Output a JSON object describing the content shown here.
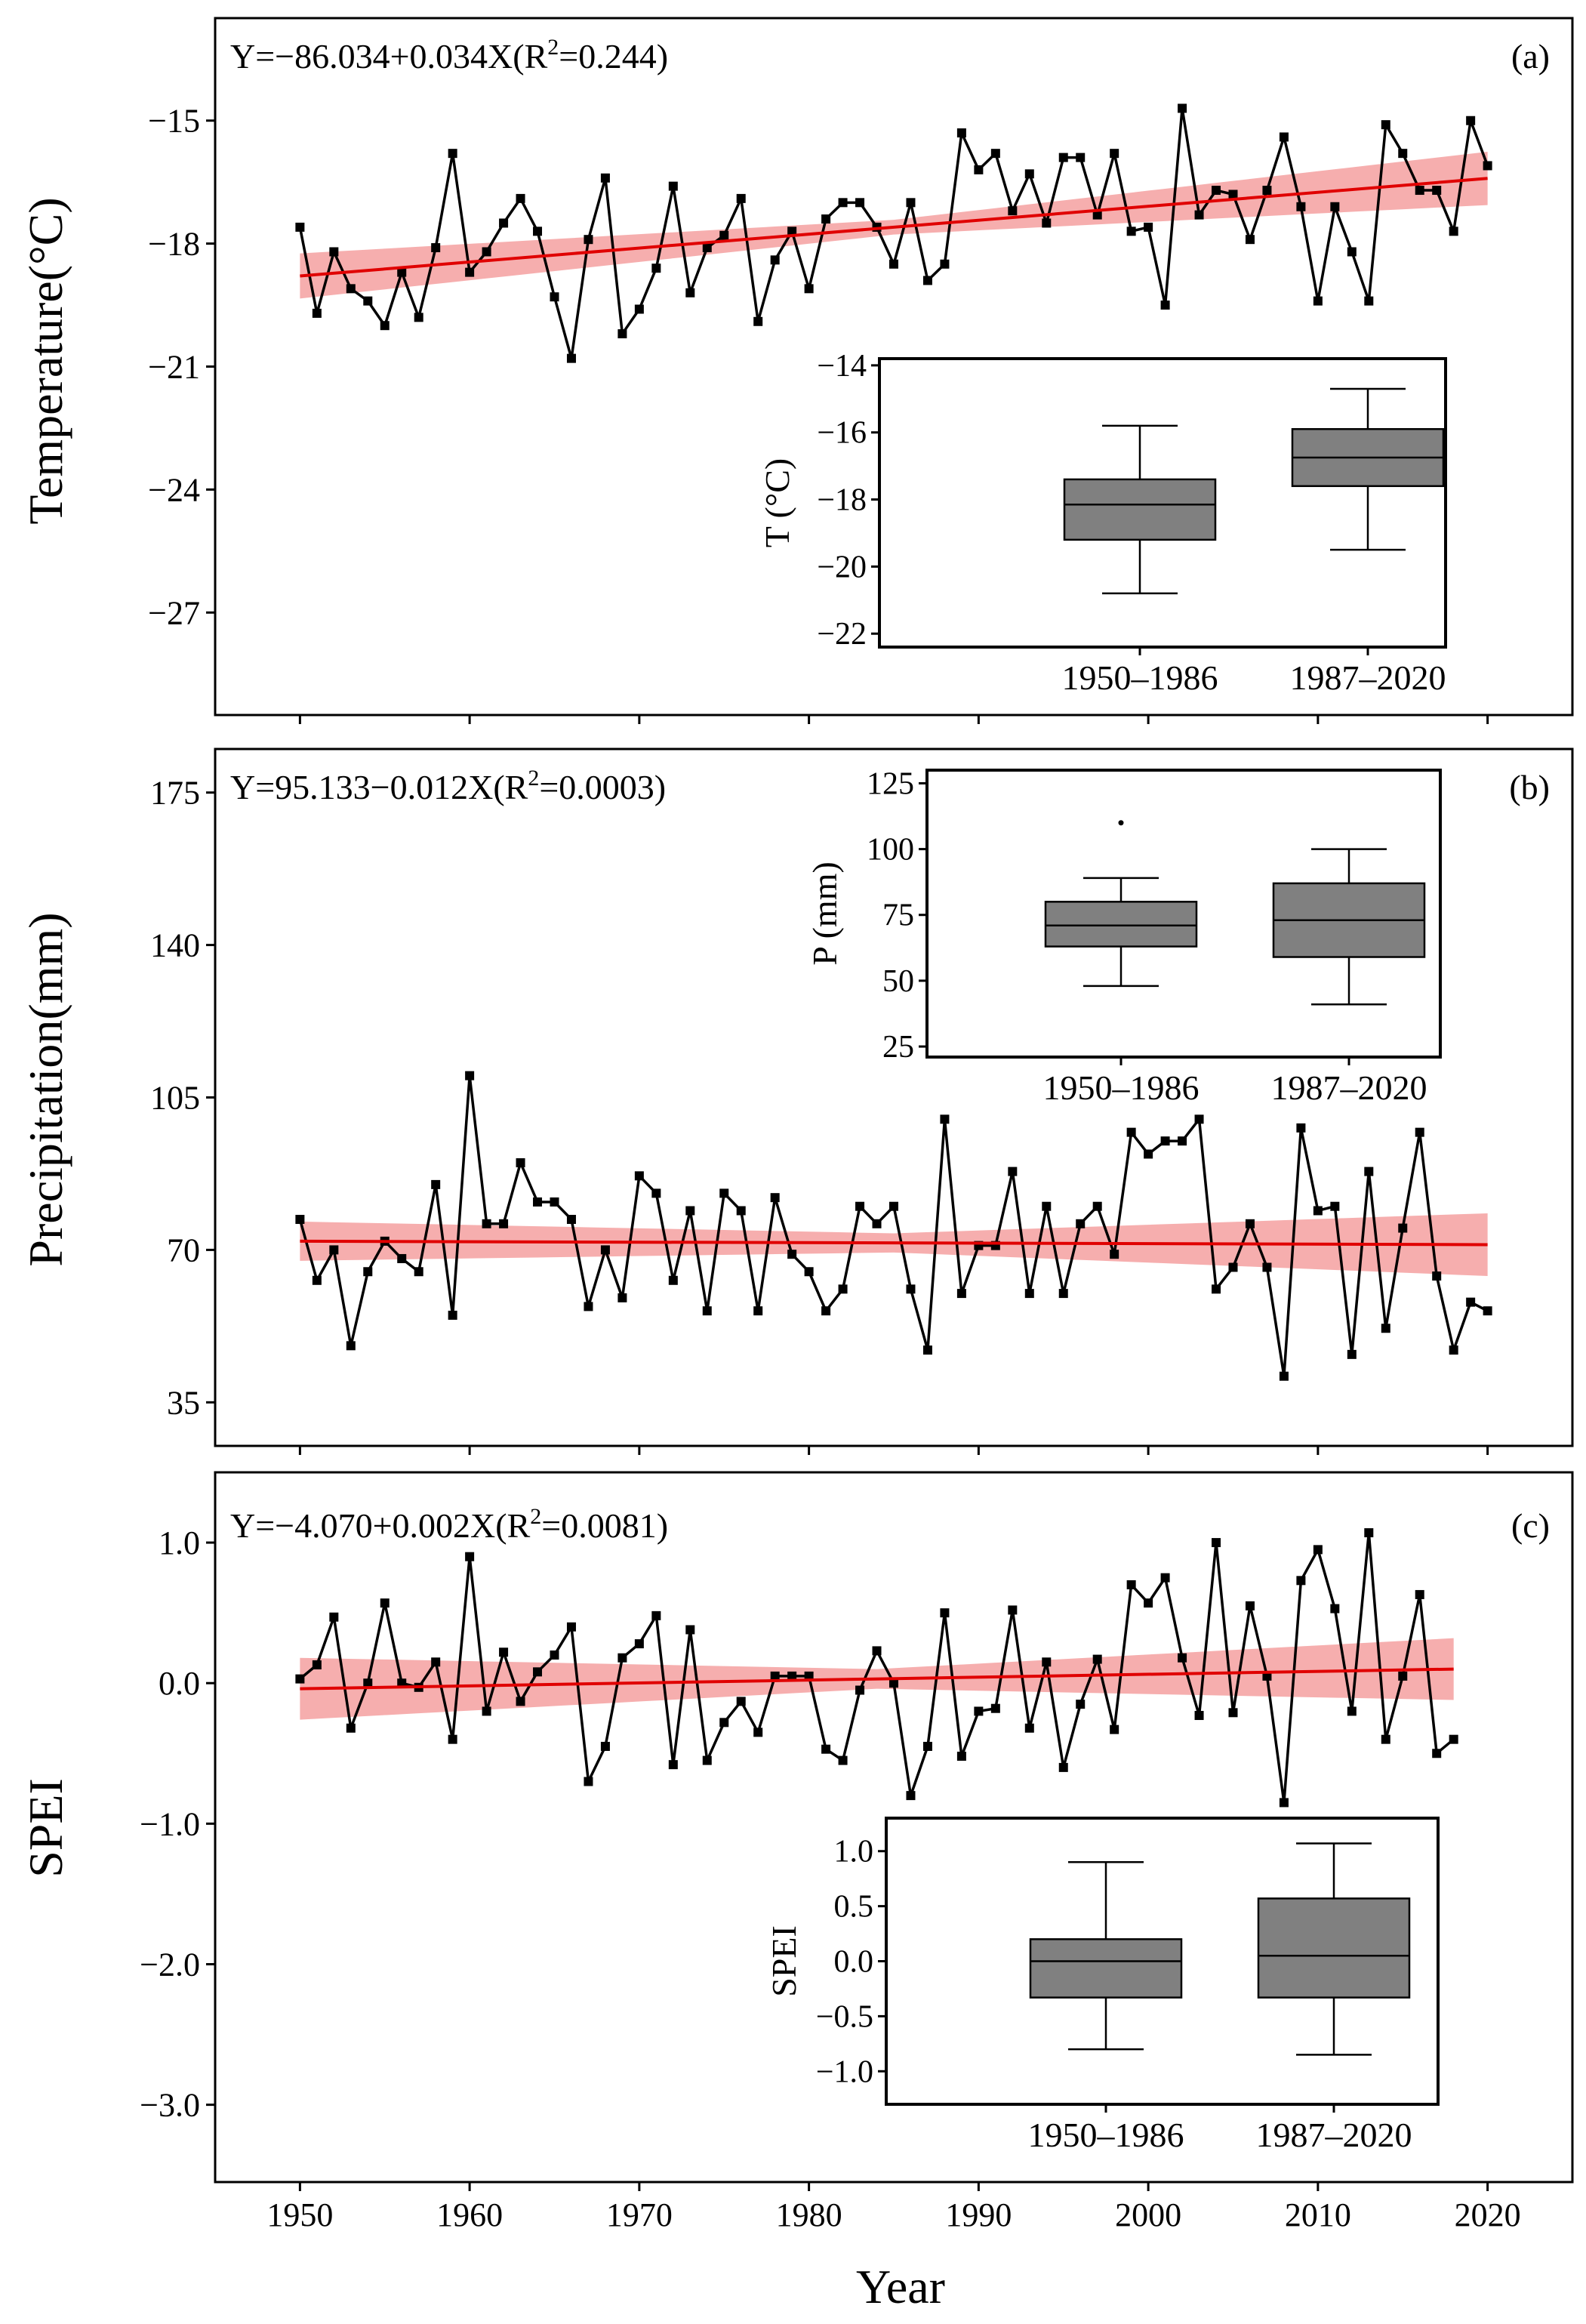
{
  "figure": {
    "xlabel": "Year",
    "x_ticks": [
      1950,
      1960,
      1970,
      1980,
      1990,
      2000,
      2010,
      2020
    ]
  },
  "chart_data": [
    {
      "type": "line",
      "panel_label": "(a)",
      "ylabel": "Temperature(°C)",
      "equation": {
        "main": "Y=−86.034+0.034X(R",
        "sup": "2",
        "end": "=0.244)"
      },
      "xlim": [
        1945,
        2025
      ],
      "ylim": [
        -29.5,
        -12.5
      ],
      "yticks": [
        -15,
        -18,
        -21,
        -24,
        -27
      ],
      "ytick_labels": [
        "−15",
        "−18",
        "−21",
        "−24",
        "−27"
      ],
      "series": [
        {
          "name": "Temperature",
          "x_start": 1950,
          "values": [
            -17.6,
            -19.7,
            -18.2,
            -19.1,
            -19.4,
            -20.0,
            -18.7,
            -19.8,
            -18.1,
            -15.8,
            -18.7,
            -18.2,
            -17.5,
            -16.9,
            -17.7,
            -19.3,
            -20.8,
            -17.9,
            -16.4,
            -20.2,
            -19.6,
            -18.6,
            -16.6,
            -19.2,
            -18.1,
            -17.8,
            -16.9,
            -19.9,
            -18.4,
            -17.7,
            -19.1,
            -17.4,
            -17.0,
            -17.0,
            -17.6,
            -18.5,
            -17.0,
            -18.9,
            -18.5,
            -15.3,
            -16.2,
            -15.8,
            -17.2,
            -16.3,
            -17.5,
            -15.9,
            -15.9,
            -17.3,
            -15.8,
            -17.7,
            -17.6,
            -19.5,
            -14.7,
            -17.3,
            -16.7,
            -16.8,
            -17.9,
            -16.7,
            -15.4,
            -17.1,
            -19.4,
            -17.1,
            -18.2,
            -19.4,
            -15.1,
            -15.8,
            -16.7,
            -16.7,
            -17.7,
            -15.0,
            -16.1
          ]
        }
      ],
      "trend": {
        "x": [
          1950,
          2020
        ],
        "y": [
          -18.79,
          -16.41
        ],
        "band_halfwidth": [
          0.55,
          0.18,
          0.65
        ]
      },
      "inset": {
        "type": "box",
        "ylabel": "T (°C)",
        "categories": [
          "1950–1986",
          "1987–2020"
        ],
        "ylim": [
          -22.4,
          -13.8
        ],
        "yticks": [
          -14,
          -16,
          -18,
          -20,
          -22
        ],
        "ytick_labels": [
          "−14",
          "−16",
          "−18",
          "−20",
          "−22"
        ],
        "boxes": [
          {
            "whislo": -20.8,
            "q1": -19.2,
            "med": -18.15,
            "q3": -17.4,
            "whishi": -15.8,
            "fliers": []
          },
          {
            "whislo": -19.5,
            "q1": -17.6,
            "med": -16.75,
            "q3": -15.9,
            "whishi": -14.7,
            "fliers": []
          }
        ]
      }
    },
    {
      "type": "line",
      "panel_label": "(b)",
      "ylabel": "Precipitation(mm)",
      "equation": {
        "main": "Y=95.133−0.012X(R",
        "sup": "2",
        "end": "=0.0003)"
      },
      "xlim": [
        1945,
        2025
      ],
      "ylim": [
        25,
        185
      ],
      "yticks": [
        175,
        140,
        105,
        70,
        35
      ],
      "ytick_labels": [
        "175",
        "140",
        "105",
        "70",
        "35"
      ],
      "series": [
        {
          "name": "Precipitation",
          "x_start": 1950,
          "values": [
            77,
            63,
            70,
            48,
            65,
            72,
            68,
            65,
            85,
            55,
            110,
            76,
            76,
            90,
            81,
            81,
            77,
            57,
            70,
            59,
            87,
            83,
            63,
            79,
            56,
            83,
            79,
            56,
            82,
            69,
            65,
            56,
            61,
            80,
            76,
            80,
            61,
            47,
            100,
            60,
            71,
            71,
            88,
            60,
            80,
            60,
            76,
            80,
            69,
            97,
            92,
            95,
            95,
            100,
            61,
            66,
            76,
            66,
            41,
            98,
            79,
            80,
            46,
            88,
            52,
            75,
            97,
            64,
            47,
            58,
            56
          ]
        }
      ],
      "trend": {
        "x": [
          1950,
          2020
        ],
        "y": [
          72.0,
          71.2
        ],
        "band_halfwidth": [
          4.5,
          2.2,
          7.2
        ]
      },
      "inset": {
        "type": "box",
        "ylabel": "P (mm)",
        "categories": [
          "1950–1986",
          "1987–2020"
        ],
        "ylim": [
          21,
          130
        ],
        "yticks": [
          125,
          100,
          75,
          50,
          25
        ],
        "ytick_labels": [
          "125",
          "100",
          "75",
          "50",
          "25"
        ],
        "boxes": [
          {
            "whislo": 48,
            "q1": 63,
            "med": 71,
            "q3": 80,
            "whishi": 89,
            "fliers": [
              110
            ]
          },
          {
            "whislo": 41,
            "q1": 59,
            "med": 73,
            "q3": 87,
            "whishi": 100,
            "fliers": []
          }
        ]
      }
    },
    {
      "type": "line",
      "panel_label": "(c)",
      "ylabel": "SPEI",
      "equation": {
        "main": "Y=−4.070+0.002X(R",
        "sup": "2",
        "end": "=0.0081)"
      },
      "xlim": [
        1945,
        2025
      ],
      "ylim": [
        -3.55,
        1.5
      ],
      "yticks": [
        1.0,
        0.0,
        -1.0,
        -2.0,
        -3.0
      ],
      "ytick_labels": [
        "1.0",
        "0.0",
        "−1.0",
        "−2.0",
        "−3.0"
      ],
      "series": [
        {
          "name": "SPEI",
          "x_start": 1950,
          "values": [
            0.03,
            0.13,
            0.47,
            -0.32,
            0.0,
            0.57,
            0.0,
            -0.03,
            0.15,
            -0.4,
            0.9,
            -0.2,
            0.22,
            -0.13,
            0.08,
            0.2,
            0.4,
            -0.7,
            -0.45,
            0.18,
            0.28,
            0.48,
            -0.58,
            0.38,
            -0.55,
            -0.28,
            -0.13,
            -0.35,
            0.05,
            0.05,
            0.05,
            -0.47,
            -0.55,
            -0.05,
            0.23,
            0.0,
            -0.8,
            -0.45,
            0.5,
            -0.52,
            -0.2,
            -0.18,
            0.52,
            -0.32,
            0.15,
            -0.6,
            -0.15,
            0.17,
            -0.33,
            0.7,
            0.57,
            0.75,
            0.18,
            -0.23,
            1.0,
            -0.21,
            0.55,
            0.05,
            -0.85,
            0.73,
            0.95,
            0.53,
            -0.2,
            1.07,
            -0.4,
            0.05,
            0.63,
            -0.5,
            -0.4
          ]
        }
      ],
      "trend": {
        "x": [
          1950,
          2018
        ],
        "y": [
          -0.04,
          0.1
        ],
        "band_halfwidth": [
          0.22,
          0.07,
          0.22
        ]
      },
      "inset": {
        "type": "box",
        "ylabel": "SPEI",
        "categories": [
          "1950–1986",
          "1987–2020"
        ],
        "ylim": [
          -1.3,
          1.3
        ],
        "yticks": [
          1.0,
          0.5,
          0.0,
          -0.5,
          -1.0
        ],
        "ytick_labels": [
          "1.0",
          "0.5",
          "0.0",
          "−0.5",
          "−1.0"
        ],
        "boxes": [
          {
            "whislo": -0.8,
            "q1": -0.33,
            "med": 0.0,
            "q3": 0.2,
            "whishi": 0.9,
            "fliers": []
          },
          {
            "whislo": -0.85,
            "q1": -0.33,
            "med": 0.05,
            "q3": 0.57,
            "whishi": 1.07,
            "fliers": []
          }
        ]
      }
    }
  ]
}
